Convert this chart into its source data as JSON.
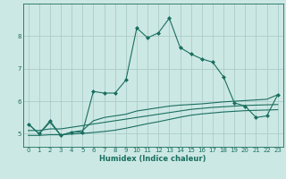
{
  "xlabel": "Humidex (Indice chaleur)",
  "ylabel": "",
  "background_color": "#cce8e4",
  "grid_color": "#aaccca",
  "line_color": "#1a6e60",
  "xlim": [
    -0.5,
    23.5
  ],
  "ylim": [
    4.6,
    9.0
  ],
  "yticks": [
    5,
    6,
    7,
    8
  ],
  "xticks": [
    0,
    1,
    2,
    3,
    4,
    5,
    6,
    7,
    8,
    9,
    10,
    11,
    12,
    13,
    14,
    15,
    16,
    17,
    18,
    19,
    20,
    21,
    22,
    23
  ],
  "series": [
    [
      5.3,
      5.0,
      5.4,
      4.95,
      5.05,
      5.05,
      6.3,
      6.25,
      6.25,
      6.65,
      8.25,
      7.95,
      8.1,
      8.55,
      7.65,
      7.45,
      7.3,
      7.2,
      6.75,
      5.95,
      5.85,
      5.5,
      5.55,
      6.2
    ],
    [
      5.3,
      5.0,
      5.35,
      4.95,
      5.05,
      5.1,
      5.4,
      5.5,
      5.55,
      5.6,
      5.7,
      5.75,
      5.8,
      5.85,
      5.88,
      5.9,
      5.92,
      5.95,
      5.98,
      6.0,
      6.02,
      6.04,
      6.06,
      6.2
    ],
    [
      5.1,
      5.1,
      5.15,
      5.15,
      5.2,
      5.25,
      5.3,
      5.35,
      5.4,
      5.45,
      5.5,
      5.55,
      5.6,
      5.65,
      5.7,
      5.75,
      5.78,
      5.81,
      5.83,
      5.85,
      5.87,
      5.88,
      5.89,
      5.9
    ],
    [
      4.95,
      4.95,
      4.97,
      4.97,
      4.99,
      5.01,
      5.04,
      5.07,
      5.11,
      5.17,
      5.24,
      5.31,
      5.37,
      5.44,
      5.51,
      5.57,
      5.61,
      5.64,
      5.67,
      5.69,
      5.71,
      5.72,
      5.73,
      5.74
    ]
  ]
}
